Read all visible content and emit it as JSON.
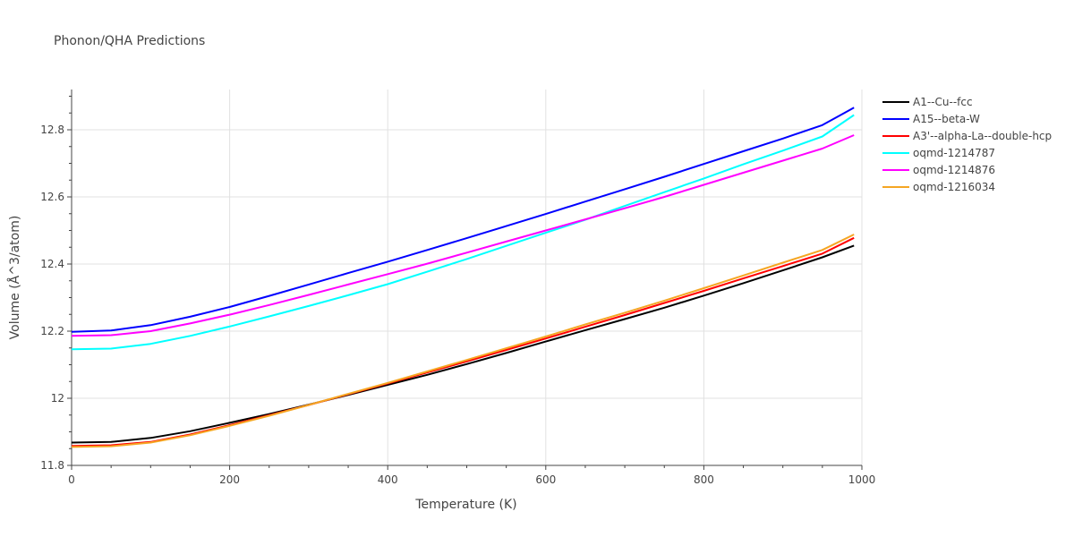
{
  "chart_data": {
    "type": "line",
    "title": "Phonon/QHA Predictions",
    "xlabel": "Temperature (K)",
    "ylabel": "Volume (Å^3/atom)",
    "xlim": [
      0,
      1000
    ],
    "ylim": [
      11.8,
      12.92
    ],
    "x_ticks": [
      0,
      200,
      400,
      600,
      800,
      1000
    ],
    "x_tick_labels": [
      "0",
      "200",
      "400",
      "600",
      "800",
      "1000"
    ],
    "y_ticks": [
      11.8,
      12.0,
      12.2,
      12.4,
      12.6,
      12.8
    ],
    "y_tick_labels": [
      "11.8",
      "12",
      "12.2",
      "12.4",
      "12.6",
      "12.8"
    ],
    "grid": true,
    "legend_position": "top-right",
    "x": [
      0,
      50,
      100,
      150,
      200,
      250,
      300,
      350,
      400,
      450,
      500,
      550,
      600,
      650,
      700,
      750,
      800,
      850,
      900,
      950,
      990
    ],
    "series": [
      {
        "name": "A1--Cu--fcc",
        "color": "#000000",
        "values": [
          11.868,
          11.87,
          11.882,
          11.902,
          11.927,
          11.953,
          11.981,
          12.01,
          12.04,
          12.07,
          12.102,
          12.135,
          12.169,
          12.203,
          12.236,
          12.27,
          12.306,
          12.343,
          12.381,
          12.42,
          12.455
        ]
      },
      {
        "name": "A15--beta-W",
        "color": "#0000ff",
        "values": [
          12.198,
          12.202,
          12.218,
          12.243,
          12.272,
          12.305,
          12.339,
          12.373,
          12.407,
          12.442,
          12.477,
          12.513,
          12.549,
          12.586,
          12.623,
          12.66,
          12.698,
          12.736,
          12.774,
          12.814,
          12.866
        ]
      },
      {
        "name": "A3'--alpha-La--double-hcp",
        "color": "#ff0000",
        "values": [
          11.858,
          11.86,
          11.87,
          11.892,
          11.92,
          11.95,
          11.98,
          12.012,
          12.044,
          12.077,
          12.11,
          12.144,
          12.178,
          12.213,
          12.248,
          12.284,
          12.32,
          12.357,
          12.394,
          12.431,
          12.478
        ]
      },
      {
        "name": "oqmd-1214787",
        "color": "#00ffff",
        "values": [
          12.146,
          12.148,
          12.162,
          12.186,
          12.214,
          12.244,
          12.275,
          12.307,
          12.34,
          12.377,
          12.415,
          12.454,
          12.493,
          12.532,
          12.573,
          12.614,
          12.655,
          12.697,
          12.738,
          12.78,
          12.844
        ]
      },
      {
        "name": "oqmd-1214876",
        "color": "#ff00ff",
        "values": [
          12.186,
          12.188,
          12.2,
          12.223,
          12.249,
          12.278,
          12.308,
          12.339,
          12.37,
          12.401,
          12.434,
          12.467,
          12.5,
          12.533,
          12.566,
          12.6,
          12.636,
          12.672,
          12.708,
          12.744,
          12.784
        ]
      },
      {
        "name": "oqmd-1216034",
        "color": "#f5a623",
        "values": [
          11.855,
          11.857,
          11.868,
          11.89,
          11.918,
          11.948,
          11.98,
          12.013,
          12.046,
          12.08,
          12.114,
          12.149,
          12.184,
          12.22,
          12.255,
          12.291,
          12.328,
          12.366,
          12.404,
          12.442,
          12.488
        ]
      }
    ]
  }
}
